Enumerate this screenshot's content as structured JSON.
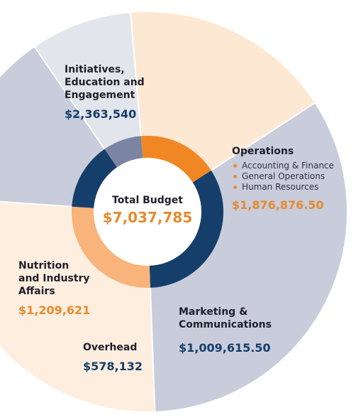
{
  "chart_data": {
    "type": "pie",
    "center": {
      "title": "Total Budget",
      "total": "$7,037,785"
    },
    "slices": [
      {
        "name": "Initiatives, Education and Engagement",
        "name_lines": [
          "Initiatives,",
          "Education and",
          "Engagement"
        ],
        "value": 2363540,
        "value_label": "$2,363,540",
        "color": "#c8ccdb",
        "ring_color": "#163e6b"
      },
      {
        "name": "Operations",
        "name_lines": [
          "Operations"
        ],
        "value": 1876876.5,
        "value_label": "$1,876,876.50",
        "color": "#fdeedf",
        "ring_color": "#f8b47a",
        "items": [
          "Accounting & Finance",
          "General Operations",
          "Human Resources"
        ]
      },
      {
        "name": "Marketing & Communications",
        "name_lines": [
          "Marketing &",
          "Communications"
        ],
        "value": 1009615.5,
        "value_label": "$1,009,615.50",
        "color": "#c8ccdb",
        "ring_color": "#163e6b"
      },
      {
        "name": "Overhead",
        "name_lines": [
          "Overhead"
        ],
        "value": 578132,
        "value_label": "$578,132",
        "color": "#e3e5ec",
        "ring_color": "#7b85a3"
      },
      {
        "name": "Nutrition and Industry Affairs",
        "name_lines": [
          "Nutrition",
          "and Industry",
          "Affairs"
        ],
        "value": 1209621,
        "value_label": "$1,209,621",
        "color": "#fde8d3",
        "ring_color": "#f08724"
      }
    ]
  }
}
